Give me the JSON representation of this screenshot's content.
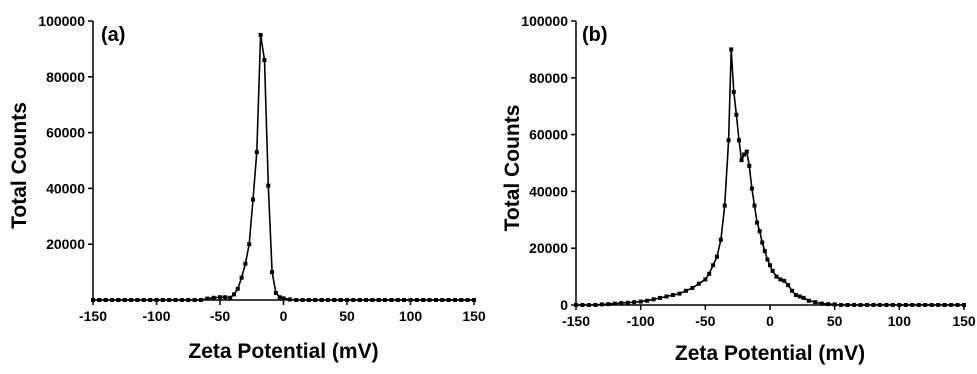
{
  "chart_data": [
    {
      "type": "line",
      "panel_label": "(a)",
      "xlabel": "Zeta Potential (mV)",
      "ylabel": "Total Counts",
      "xlim": [
        -150,
        150
      ],
      "ylim": [
        0,
        100000
      ],
      "xticks": [
        -150,
        -100,
        -50,
        0,
        50,
        100,
        150
      ],
      "yticks": [
        20000,
        40000,
        60000,
        80000,
        100000
      ],
      "grid": false,
      "legend": "none",
      "marker": "square",
      "series": [
        {
          "x": [
            -150,
            -145,
            -140,
            -135,
            -130,
            -125,
            -120,
            -115,
            -110,
            -105,
            -100,
            -95,
            -90,
            -85,
            -80,
            -75,
            -70,
            -65,
            -60,
            -55,
            -50,
            -46,
            -42,
            -39,
            -36,
            -33,
            -30,
            -27,
            -24,
            -21,
            -18,
            -15,
            -12,
            -9,
            -6,
            -3,
            0,
            5,
            10,
            15,
            20,
            25,
            30,
            35,
            40,
            45,
            50,
            55,
            60,
            65,
            70,
            75,
            80,
            85,
            90,
            95,
            100,
            105,
            110,
            115,
            120,
            125,
            130,
            135,
            140,
            145,
            150
          ],
          "y": [
            0,
            0,
            0,
            0,
            0,
            0,
            0,
            0,
            0,
            0,
            0,
            0,
            0,
            0,
            0,
            0,
            0,
            0,
            500,
            800,
            1000,
            1000,
            800,
            2000,
            4000,
            8000,
            13000,
            20000,
            36000,
            53000,
            95000,
            86000,
            41000,
            10000,
            2500,
            1000,
            600,
            200,
            0,
            0,
            0,
            0,
            0,
            0,
            0,
            0,
            0,
            0,
            0,
            0,
            0,
            0,
            0,
            0,
            0,
            0,
            0,
            0,
            0,
            0,
            0,
            0,
            0,
            0,
            0,
            0,
            0
          ]
        }
      ]
    },
    {
      "type": "line",
      "panel_label": "(b)",
      "xlabel": "Zeta Potential (mV)",
      "ylabel": "Total Counts",
      "xlim": [
        -150,
        150
      ],
      "ylim": [
        0,
        100000
      ],
      "xticks": [
        -150,
        -100,
        -50,
        0,
        50,
        100,
        150
      ],
      "yticks": [
        0,
        20000,
        40000,
        60000,
        80000,
        100000
      ],
      "grid": false,
      "legend": "none",
      "marker": "square",
      "series": [
        {
          "x": [
            -150,
            -145,
            -140,
            -135,
            -130,
            -125,
            -120,
            -115,
            -110,
            -105,
            -100,
            -95,
            -90,
            -85,
            -80,
            -75,
            -70,
            -65,
            -60,
            -55,
            -50,
            -47,
            -44,
            -41,
            -38,
            -35,
            -32,
            -30,
            -28,
            -26,
            -24,
            -22,
            -20,
            -18,
            -16,
            -14,
            -12,
            -10,
            -8,
            -6,
            -4,
            -2,
            0,
            2,
            5,
            8,
            11,
            14,
            17,
            20,
            23,
            26,
            30,
            35,
            40,
            45,
            50,
            55,
            60,
            65,
            70,
            75,
            80,
            85,
            90,
            95,
            100,
            105,
            110,
            115,
            120,
            125,
            130,
            135,
            140,
            145,
            150
          ],
          "y": [
            0,
            0,
            0,
            0,
            200,
            300,
            500,
            700,
            800,
            1000,
            1200,
            1500,
            2000,
            2500,
            3000,
            3500,
            4000,
            5000,
            6000,
            7500,
            9000,
            11000,
            14000,
            17000,
            23000,
            35000,
            58000,
            90000,
            75000,
            67000,
            58000,
            51000,
            53000,
            54000,
            49000,
            41000,
            35000,
            29000,
            26000,
            22000,
            19000,
            16000,
            14000,
            12000,
            10000,
            9000,
            8500,
            7000,
            5000,
            3500,
            3000,
            2500,
            1500,
            1000,
            500,
            300,
            200,
            0,
            0,
            0,
            0,
            0,
            0,
            0,
            0,
            0,
            0,
            0,
            0,
            0,
            0,
            0,
            0,
            0,
            0,
            0,
            0
          ]
        }
      ]
    }
  ]
}
